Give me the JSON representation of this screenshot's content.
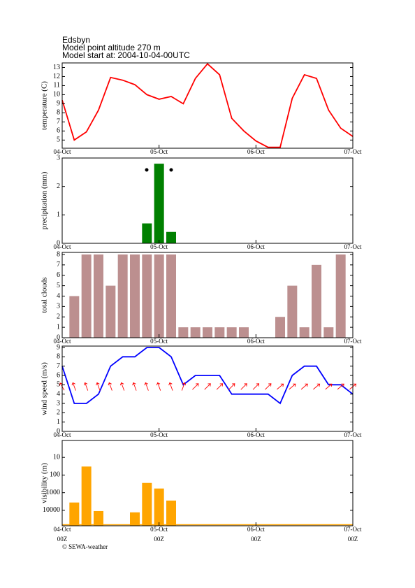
{
  "header": {
    "lines": [
      "Edsbyn",
      "Model point altitude  270 m",
      "Model start at: 2004-10-04-00UTC"
    ]
  },
  "footer": "© SEWA-weather",
  "chart_data": [
    {
      "type": "line",
      "ylabel": "temperature (C)",
      "color": "#ff0000",
      "x": [
        0,
        3,
        6,
        9,
        12,
        15,
        18,
        21,
        24,
        27,
        30,
        33,
        36,
        39,
        42,
        45,
        48,
        51,
        54,
        57,
        60,
        63,
        66,
        69,
        72
      ],
      "values": [
        9.4,
        5.0,
        5.9,
        8.3,
        11.9,
        11.6,
        11.1,
        10.0,
        9.5,
        9.8,
        9.0,
        11.8,
        13.4,
        12.2,
        7.4,
        6.0,
        4.9,
        4.2,
        4.2,
        9.6,
        12.2,
        11.8,
        8.3,
        6.3,
        5.4
      ],
      "xlim": [
        0,
        72
      ],
      "xticks": [
        {
          "value": 0,
          "label": "04-Oct"
        },
        {
          "value": 24,
          "label": "05-Oct"
        },
        {
          "value": 48,
          "label": "06-Oct"
        },
        {
          "value": 72,
          "label": "07-Oct"
        }
      ],
      "ylim": [
        4.1,
        13.5
      ],
      "yticks": [
        5,
        6,
        7,
        8,
        9,
        10,
        11,
        12,
        13
      ]
    },
    {
      "type": "bar",
      "ylabel": "precipitation (mm)",
      "color": "#008000",
      "x": [
        0,
        3,
        6,
        9,
        12,
        15,
        18,
        21,
        24,
        27,
        30,
        33,
        36,
        39,
        42,
        45,
        48,
        51,
        54,
        57,
        60,
        63,
        66,
        69,
        72
      ],
      "values": [
        0,
        0,
        0,
        0,
        0,
        0,
        0,
        0.7,
        2.8,
        0.4,
        0,
        0,
        0,
        0,
        0,
        0,
        0,
        0,
        0,
        0,
        0,
        0,
        0,
        0,
        0
      ],
      "xlim": [
        0,
        72
      ],
      "xticks": [
        {
          "value": 0,
          "label": "04-Oct"
        },
        {
          "value": 24,
          "label": "05-Oct"
        },
        {
          "value": 48,
          "label": "06-Oct"
        },
        {
          "value": 72,
          "label": "07-Oct"
        }
      ],
      "ylim": [
        0,
        3
      ],
      "yticks": [
        0,
        1,
        2,
        3
      ]
    },
    {
      "type": "bar",
      "ylabel": "total clouds",
      "color": "#bc8f8f",
      "x": [
        0,
        3,
        6,
        9,
        12,
        15,
        18,
        21,
        24,
        27,
        30,
        33,
        36,
        39,
        42,
        45,
        48,
        51,
        54,
        57,
        60,
        63,
        66,
        69,
        72
      ],
      "values": [
        0,
        4,
        8,
        8,
        5,
        8,
        8,
        8,
        8,
        8,
        1,
        1,
        1,
        1,
        1,
        1,
        0,
        0,
        2,
        5,
        1,
        7,
        1,
        8,
        null
      ],
      "xlim": [
        0,
        72
      ],
      "xticks": [
        {
          "value": 0,
          "label": "04-Oct"
        },
        {
          "value": 24,
          "label": "05-Oct"
        },
        {
          "value": 48,
          "label": "06-Oct"
        },
        {
          "value": 72,
          "label": "07-Oct"
        }
      ],
      "ylim": [
        0,
        8.2
      ],
      "yticks": [
        0,
        1,
        2,
        3,
        4,
        5,
        6,
        7,
        8
      ]
    },
    {
      "type": "line",
      "ylabel": "wind speed (m/s)",
      "color": "#0000ff",
      "direction_color": "#ff0000",
      "x": [
        0,
        3,
        6,
        9,
        12,
        15,
        18,
        21,
        24,
        27,
        30,
        33,
        36,
        39,
        42,
        45,
        48,
        51,
        54,
        57,
        60,
        63,
        66,
        69,
        72
      ],
      "values": [
        7,
        3,
        3,
        4,
        7,
        8,
        8,
        9,
        9,
        8,
        5,
        6,
        6,
        6,
        4,
        4,
        4,
        4,
        3,
        6,
        7,
        7,
        5,
        5,
        4
      ],
      "direction": [
        330,
        340,
        340,
        340,
        340,
        340,
        340,
        340,
        340,
        340,
        20,
        45,
        45,
        45,
        45,
        45,
        45,
        45,
        50,
        50,
        50,
        50,
        50,
        50,
        50
      ],
      "xlim": [
        0,
        72
      ],
      "xticks": [
        {
          "value": 0,
          "label": "04-Oct"
        },
        {
          "value": 24,
          "label": "05-Oct"
        },
        {
          "value": 48,
          "label": "06-Oct"
        },
        {
          "value": 72,
          "label": "07-Oct"
        }
      ],
      "ylim": [
        0,
        9.15
      ],
      "yticks": [
        0,
        1,
        2,
        3,
        4,
        5,
        6,
        7,
        8,
        9
      ]
    },
    {
      "type": "bar",
      "ylabel": "visibility (m)",
      "color": "#ffa500",
      "log_scale": true,
      "y_inverted": true,
      "x": [
        0,
        3,
        6,
        9,
        12,
        15,
        18,
        21,
        24,
        27,
        30,
        33,
        36,
        39,
        42,
        45,
        48,
        51,
        54,
        57,
        60,
        63,
        66,
        69,
        72
      ],
      "values": [
        null,
        3600,
        33,
        11000,
        null,
        null,
        13000,
        280,
        580,
        2800,
        null,
        null,
        null,
        null,
        null,
        null,
        null,
        null,
        null,
        null,
        null,
        null,
        null,
        null,
        null
      ],
      "xlim": [
        0,
        72
      ],
      "xticks": [
        {
          "value": 0,
          "label": "04-Oct"
        },
        {
          "value": 24,
          "label": "05-Oct"
        },
        {
          "value": 48,
          "label": "06-Oct"
        },
        {
          "value": 72,
          "label": "07-Oct"
        }
      ],
      "xtick_sublabels": [
        "00Z",
        "00Z",
        "00Z",
        "00Z"
      ],
      "ylim": [
        1.1,
        75000
      ],
      "yticks": [
        10,
        100,
        1000,
        10000
      ]
    }
  ]
}
